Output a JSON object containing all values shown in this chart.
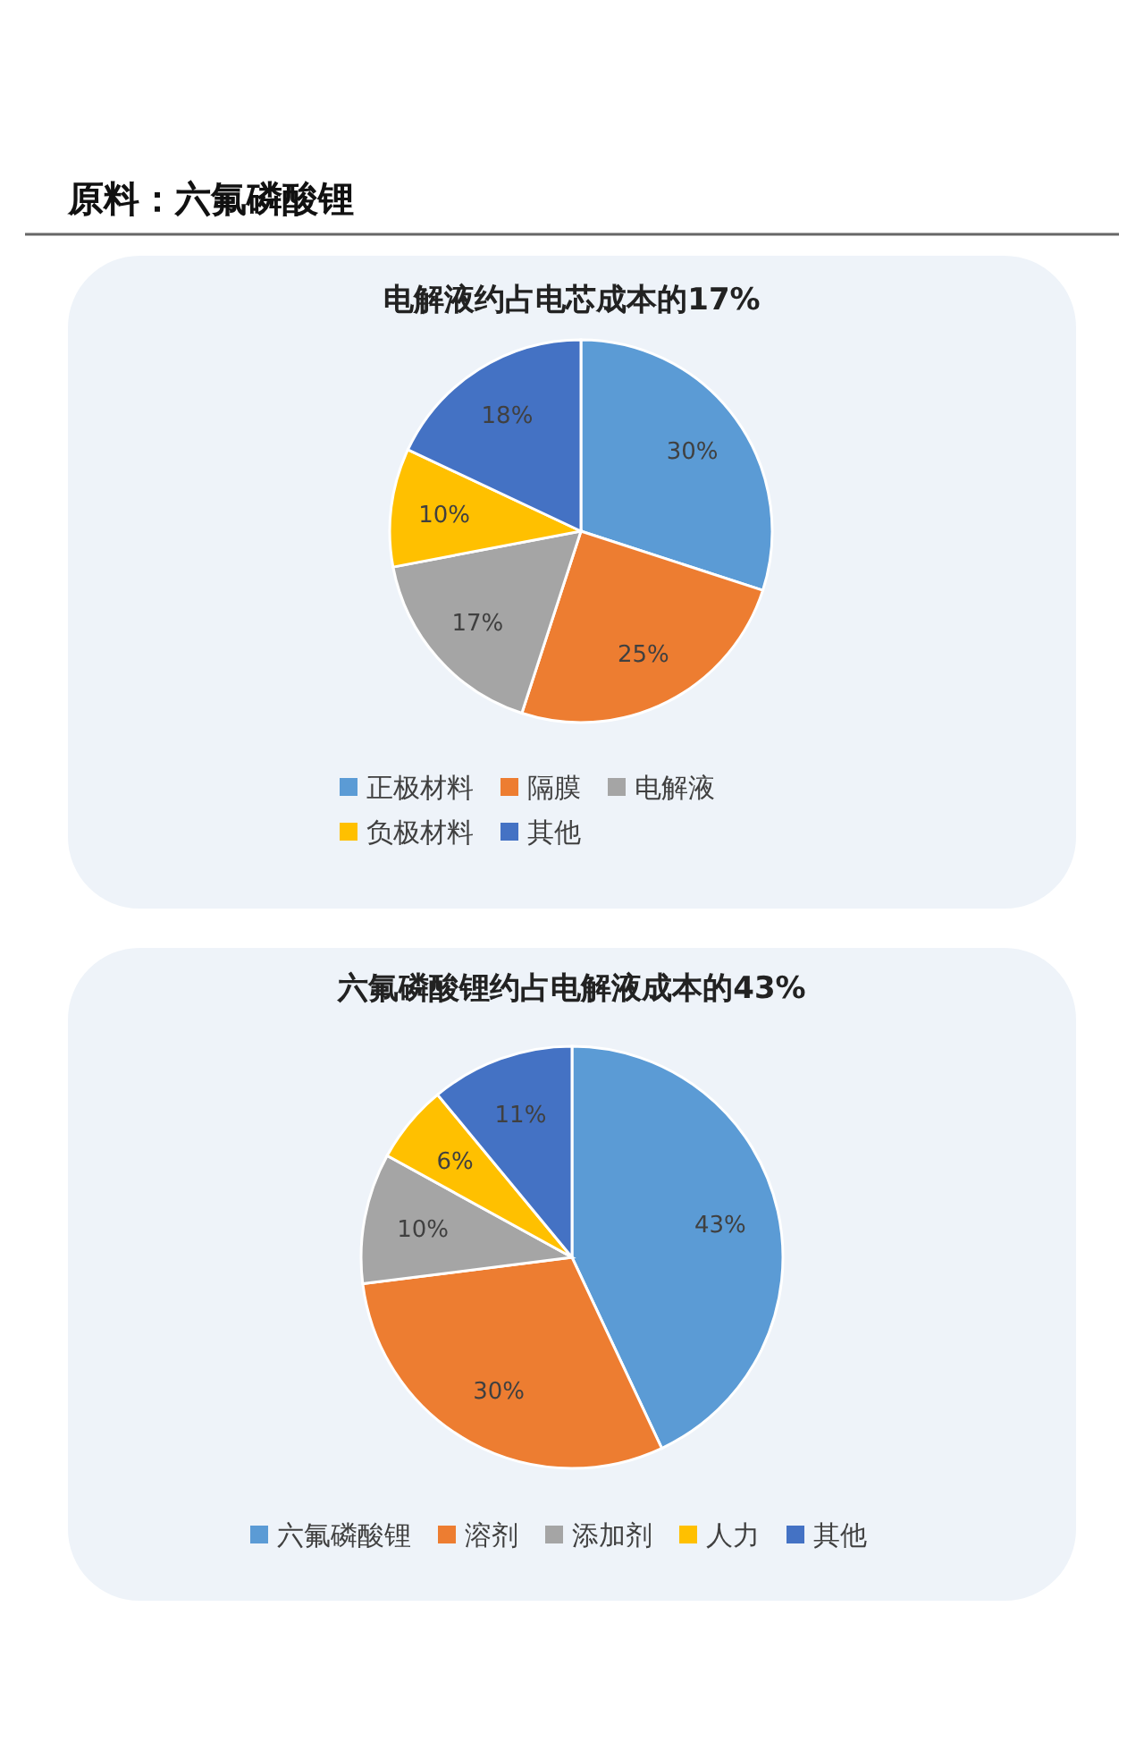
{
  "chart_data": [
    {
      "type": "pie",
      "title": "电解液约占电芯成本的17%",
      "annotations": [
        "原料：六氟磷酸锂"
      ],
      "categories": [
        "正极材料",
        "隔膜",
        "电解液",
        "负极材料",
        "其他"
      ],
      "values": [
        30,
        25,
        17,
        10,
        18
      ],
      "value_labels": [
        "30%",
        "25%",
        "17%",
        "10%",
        "18%"
      ],
      "colors": [
        "#5b9bd5",
        "#ed7d31",
        "#a5a5a5",
        "#ffc000",
        "#4472c4"
      ],
      "legend": "bottom"
    },
    {
      "type": "pie",
      "title": "六氟磷酸锂约占电解液成本的43%",
      "categories": [
        "六氟磷酸锂",
        "溶剂",
        "添加剂",
        "人力",
        "其他"
      ],
      "values": [
        43,
        30,
        10,
        6,
        11
      ],
      "value_labels": [
        "43%",
        "30%",
        "10%",
        "6%",
        "11%"
      ],
      "colors": [
        "#5b9bd5",
        "#ed7d31",
        "#a5a5a5",
        "#ffc000",
        "#4472c4"
      ],
      "legend": "bottom"
    }
  ]
}
